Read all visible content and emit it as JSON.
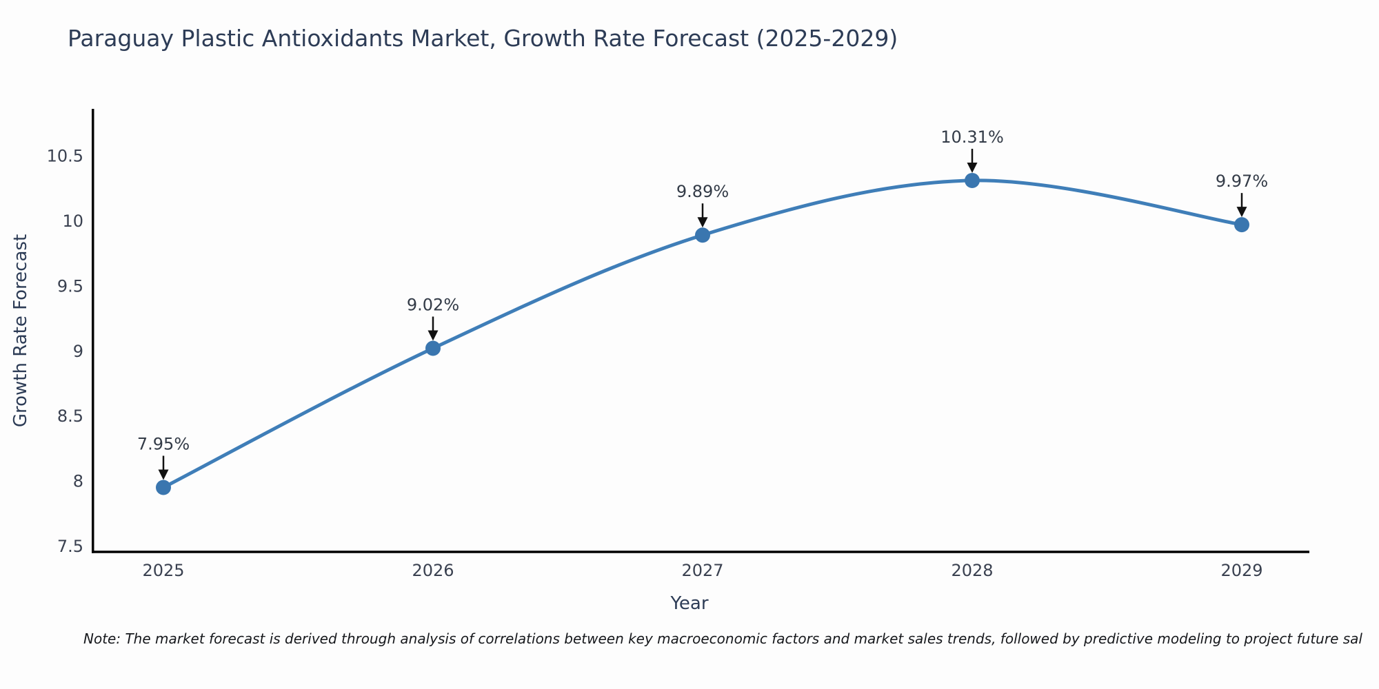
{
  "chart_data": {
    "type": "line",
    "line_shape": "spline",
    "title": "Paraguay Plastic Antioxidants Market, Growth Rate Forecast (2025-2029)",
    "xlabel": "Year",
    "ylabel": "Growth Rate Forecast",
    "categories": [
      "2025",
      "2026",
      "2027",
      "2028",
      "2029"
    ],
    "series": [
      {
        "name": "Growth Rate Forecast",
        "values": [
          7.95,
          9.02,
          9.89,
          10.31,
          9.97
        ]
      }
    ],
    "point_labels": [
      "7.95%",
      "9.02%",
      "9.89%",
      "10.31%",
      "9.97%"
    ],
    "ylim": [
      7.46,
      10.85
    ],
    "yticks": [
      7.5,
      8,
      8.5,
      9,
      9.5,
      10,
      10.5
    ],
    "ytick_labels": [
      "7.5",
      "8",
      "8.5",
      "9",
      "9.5",
      "10",
      "10.5"
    ],
    "grid": false,
    "legend": false,
    "colors": {
      "line": "#3f7eb8",
      "marker": "#3a76af",
      "arrow": "#111111",
      "axis": "#010101",
      "title_text": "#2d3c56",
      "tick_text": "#3a4150",
      "annotation_text": "#333b47",
      "background": "#fdfdfd"
    }
  },
  "note": {
    "text": "Note: The market forecast is derived through analysis of correlations between key macroeconomic factors and market sales trends, followed by predictive modeling to project future sal"
  }
}
